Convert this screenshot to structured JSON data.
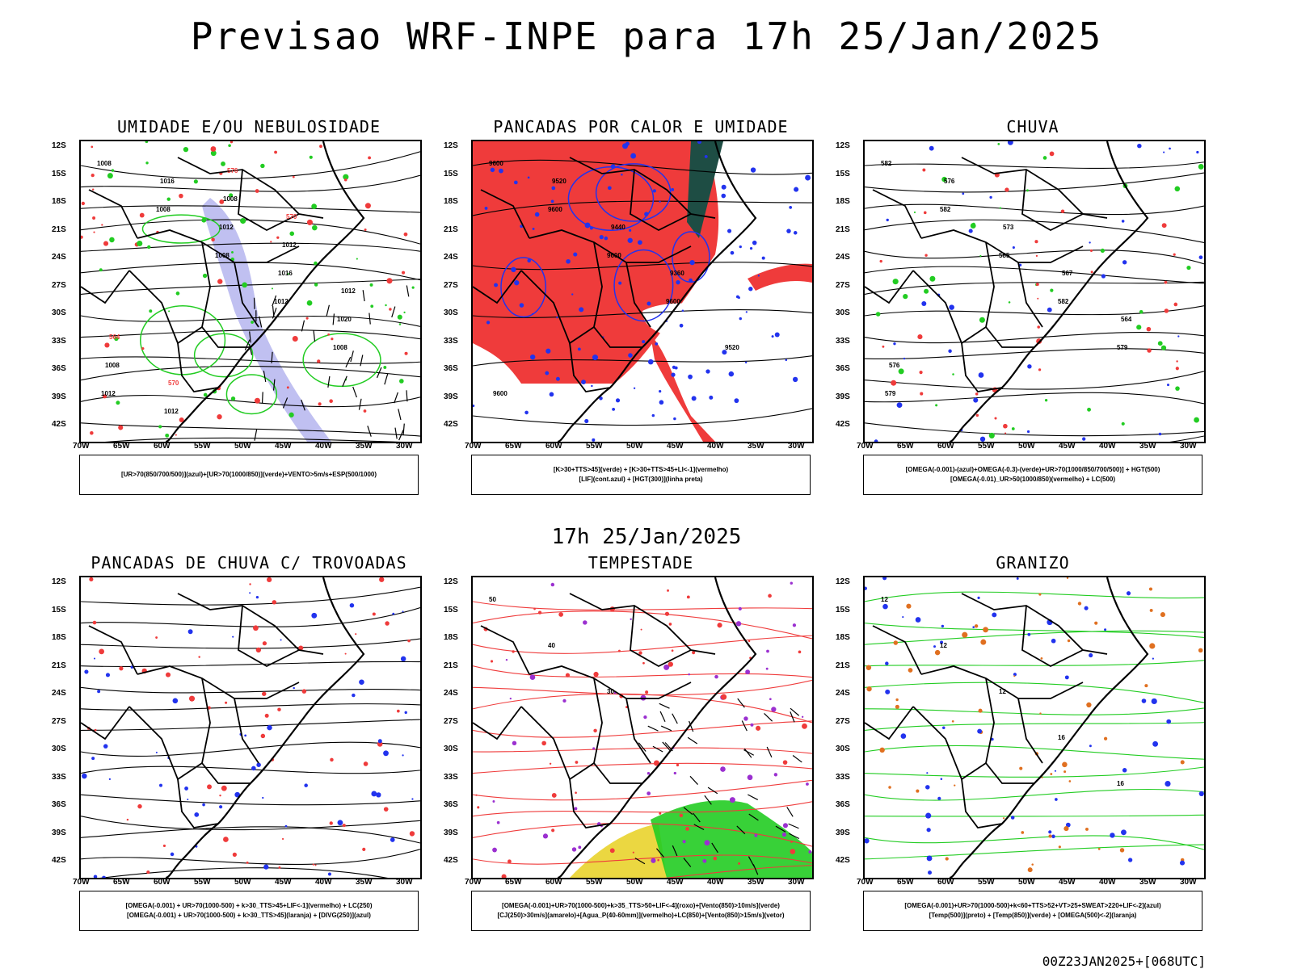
{
  "title": "Previsao WRF-INPE  para 17h 25/Jan/2025",
  "mid_time": "17h 25/Jan/2025",
  "run_stamp": "00Z23JAN2025+[068UTC]",
  "lat_ticks": [
    "12S",
    "15S",
    "18S",
    "21S",
    "24S",
    "27S",
    "30S",
    "33S",
    "36S",
    "39S",
    "42S"
  ],
  "lon_ticks": [
    "70W",
    "65W",
    "60W",
    "55W",
    "50W",
    "45W",
    "40W",
    "35W",
    "30W"
  ],
  "panels": [
    {
      "title": "UMIDADE E/OU NEBULOSIDADE",
      "legend1": "[UR>70(850/700/500)](azul)+[UR>70(1000/850)](verde)+VENTO>5m/s+ESP(500/1000)",
      "legend2": "",
      "labels": [
        "1008",
        "1008",
        "1008",
        "1012",
        "1008",
        "1012",
        "1016",
        "1012",
        "1016",
        "1020",
        "1008",
        "1012",
        "1008",
        "1012",
        "1012",
        "564",
        "570",
        "576",
        "570"
      ]
    },
    {
      "title": "PANCADAS POR CALOR E UMIDADE",
      "legend1": "[K>30+TTS>45](verde) + [K>30+TTS>45+LI<-1](vermelho)",
      "legend2": "[LIF](cont.azul) + [HGT(300)](linha preta)",
      "labels": [
        "9600",
        "9600",
        "9600",
        "9600",
        "9520",
        "9600",
        "9520",
        "9440",
        "9360"
      ]
    },
    {
      "title": "CHUVA",
      "legend1": "[OMEGA(-0.001)-(azul)+OMEGA(-0.3)-(verde)+UR>70(1000/850/700/500)] + HGT(500)",
      "legend2": "[OMEGA(-0.01)_UR>50(1000/850)(vermelho) + LC(500)",
      "labels": [
        "582",
        "582",
        "585",
        "582",
        "579",
        "579",
        "576",
        "573",
        "567",
        "564",
        "576"
      ]
    },
    {
      "title": "PANCADAS DE CHUVA C/ TROVOADAS",
      "legend1": "[OMEGA(-0.001) + UR>70(1000-500) + k>30_TTS>45+LIF<-1](vermelho) + LC(250)",
      "legend2": "[OMEGA(-0.001) + UR>70(1000-500) + k>30_TTS>45](laranja) + [DIVG(250)](azul)",
      "labels": []
    },
    {
      "title": "TEMPESTADE",
      "legend1": "[OMEGA(-0.001)+UR>70(1000-500)+k>35_TTS>50+LIF<-4](roxo)+[Vento(850)>10m/s](verde)",
      "legend2": "[CJ(250)>30m/s](amarelo)+[Agua_P(40-60mm)](vermelho)+LC(850)+[Vento(850)>15m/s](vetor)",
      "labels": [
        "50",
        "40",
        "30"
      ]
    },
    {
      "title": "GRANIZO",
      "legend1": "[OMEGA(-0.001)+UR>70(1000-500)+k<60+TTS>52+VT>25+SWEAT>220+LIF<-2](azul)",
      "legend2": "[Temp(500)](preto) + [Temp(850)](verde) + [OMEGA(500)<-2](laranja)",
      "labels": [
        "12",
        "12",
        "12",
        "16",
        "16"
      ]
    }
  ],
  "colors": {
    "red": "#ef3b3b",
    "green": "#22cc22",
    "blue": "#2233ee",
    "lavender": "#b0b0ee",
    "darkgreen": "#1e4d44",
    "yellow": "#e8d020",
    "orange": "#e07020",
    "purple": "#9b30d0"
  }
}
